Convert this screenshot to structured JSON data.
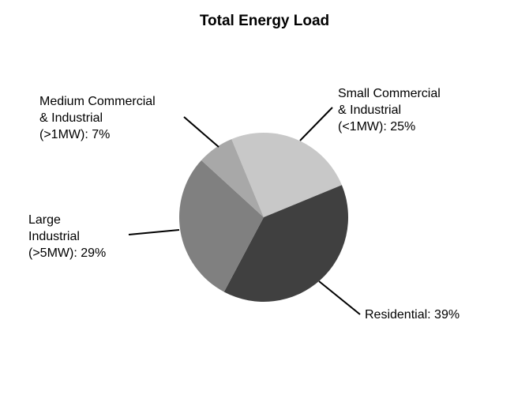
{
  "chart_data": {
    "type": "pie",
    "title": "Total Energy Load",
    "slices": [
      {
        "id": "small-commercial",
        "label_lines": [
          "Small Commercial",
          "& Industrial",
          "(<1MW): 25%"
        ],
        "value": 25,
        "color": "#c8c8c8"
      },
      {
        "id": "residential",
        "label_lines": [
          "Residential: 39%"
        ],
        "value": 39,
        "color": "#404040"
      },
      {
        "id": "large-industrial",
        "label_lines": [
          "Large",
          "Industrial",
          "(>5MW): 29%"
        ],
        "value": 29,
        "color": "#808080"
      },
      {
        "id": "medium-commercial",
        "label_lines": [
          "Medium Commercial",
          "& Industrial",
          "(>1MW): 7%"
        ],
        "value": 7,
        "color": "#a8a8a8"
      }
    ],
    "legend": "none"
  }
}
